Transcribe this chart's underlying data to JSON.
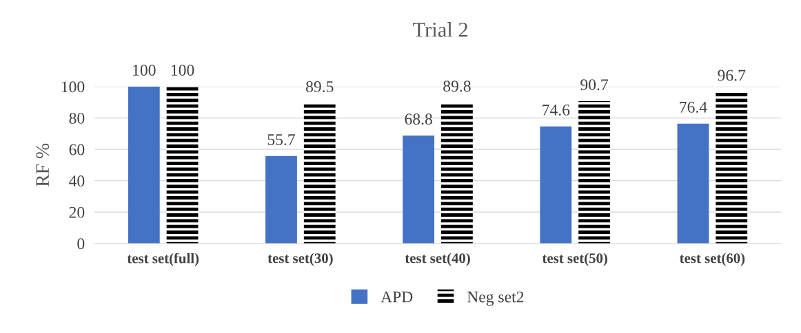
{
  "chart_data": {
    "type": "bar",
    "title": "Trial 2",
    "ylabel": "RF %",
    "categories": [
      "test set(full)",
      "test set(30)",
      "test set(40)",
      "test set(50)",
      "test set(60)"
    ],
    "series": [
      {
        "name": "APD",
        "color": "#4472c4",
        "values": [
          100,
          55.7,
          68.8,
          74.6,
          76.4
        ]
      },
      {
        "name": "Neg set2",
        "color": "#000000",
        "values": [
          100,
          89.5,
          89.8,
          90.7,
          96.7
        ]
      }
    ],
    "ylim": [
      0,
      100
    ],
    "yticks": [
      0,
      20,
      40,
      60,
      80,
      100
    ],
    "grid": "y",
    "legend": "bottom",
    "data_labels": true
  }
}
